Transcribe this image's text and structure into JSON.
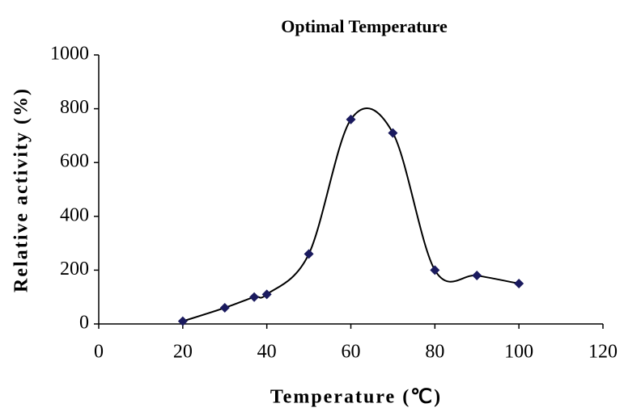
{
  "chart_data": {
    "type": "line",
    "title": "Optimal Temperature",
    "x_label": "Temperature (℃)",
    "y_label": "Relative activity (%)",
    "x": [
      20,
      30,
      37,
      40,
      50,
      60,
      70,
      80,
      90,
      100
    ],
    "series": [
      {
        "name": "Relative activity",
        "color": "#1a1a5e",
        "values": [
          10,
          60,
          100,
          110,
          260,
          760,
          710,
          200,
          180,
          150
        ]
      }
    ],
    "xlim": [
      0,
      120
    ],
    "xticks": [
      0,
      20,
      40,
      60,
      80,
      100,
      120
    ],
    "ylim": [
      0,
      1000
    ],
    "yticks": [
      0,
      200,
      400,
      600,
      800,
      1000
    ],
    "smooth": true,
    "grid": false,
    "legend": false
  }
}
